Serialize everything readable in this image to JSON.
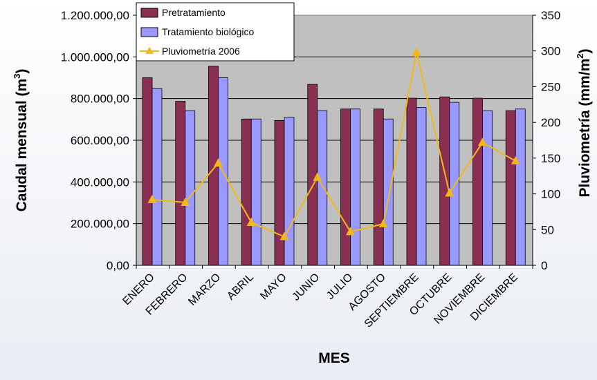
{
  "chart_data": {
    "type": "bar",
    "categories": [
      "ENERO",
      "FEBRERO",
      "MARZO",
      "ABRIL",
      "MAYO",
      "JUNIO",
      "JULIO",
      "AGOSTO",
      "SEPTIEMBRE",
      "OCTUBRE",
      "NOVIEMBRE",
      "DICIEMBRE"
    ],
    "series": [
      {
        "name": "Pretratamiento",
        "kind": "bar",
        "axis": "left",
        "color": "#8B2F52",
        "values": [
          900000,
          787000,
          955000,
          702000,
          695000,
          868000,
          750000,
          750000,
          802000,
          808000,
          802000,
          742000
        ]
      },
      {
        "name": "Tratamiento biológico",
        "kind": "bar",
        "axis": "left",
        "color": "#9999FF",
        "values": [
          848000,
          742000,
          900000,
          702000,
          710000,
          742000,
          750000,
          702000,
          757000,
          782000,
          742000,
          750000
        ]
      },
      {
        "name": "Pluviometría 2006",
        "kind": "line",
        "axis": "right",
        "color": "#F2B818",
        "values": [
          92,
          88,
          143,
          60,
          40,
          123,
          47,
          58,
          298,
          101,
          172,
          146
        ]
      }
    ],
    "y_left": {
      "label": "Caudal mensual (m",
      "label_sup": "3",
      "label_end": ")",
      "min": 0,
      "max": 1200000,
      "ticks": [
        "0,00",
        "200.000,00",
        "400.000,00",
        "600.000,00",
        "800.000,00",
        "1.000.000,00",
        "1.200.000,00"
      ]
    },
    "y_right": {
      "label": "Pluviometría (mm/m",
      "label_sup": "2",
      "label_end": ")",
      "min": 0,
      "max": 350,
      "ticks": [
        "0",
        "50",
        "100",
        "150",
        "200",
        "250",
        "300",
        "350"
      ]
    },
    "xlabel": "MES",
    "grid": true,
    "legend_position": "top-left",
    "plot_background": "#C0C0C0"
  }
}
